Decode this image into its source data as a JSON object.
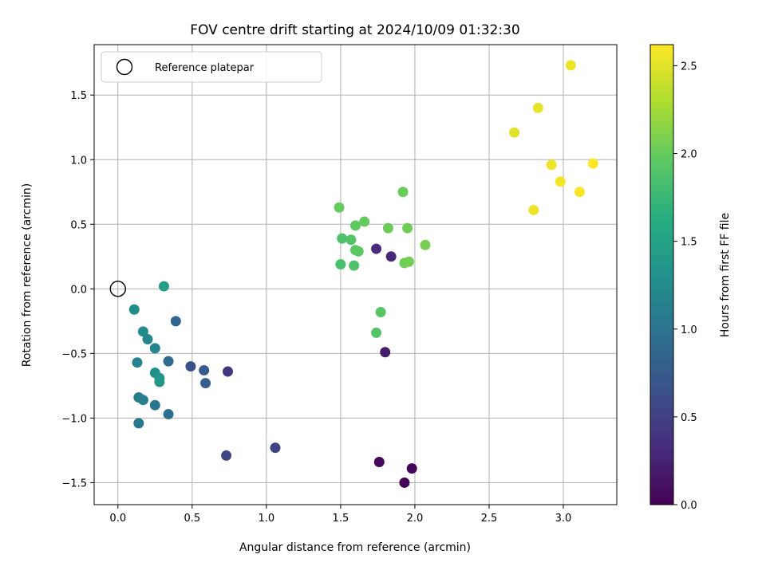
{
  "chart_data": {
    "type": "scatter",
    "title": "FOV centre drift starting at 2024/10/09 01:32:30",
    "xlabel": "Angular distance from reference (arcmin)",
    "ylabel": "Rotation from reference (arcmin)",
    "xlim": [
      -0.16,
      3.36
    ],
    "ylim": [
      -1.67,
      1.89
    ],
    "x_ticks": [
      0.0,
      0.5,
      1.0,
      1.5,
      2.0,
      2.5,
      3.0
    ],
    "x_tick_labels": [
      "0.0",
      "0.5",
      "1.0",
      "1.5",
      "2.0",
      "2.5",
      "3.0"
    ],
    "y_ticks": [
      -1.5,
      -1.0,
      -0.5,
      0.0,
      0.5,
      1.0,
      1.5
    ],
    "y_tick_labels": [
      "−1.5",
      "−1.0",
      "−0.5",
      "0.0",
      "0.5",
      "1.0",
      "1.5"
    ],
    "grid": true,
    "legend": {
      "position": "top-left",
      "entries": [
        "Reference platepar"
      ]
    },
    "colorbar": {
      "label": "Hours from first FF file",
      "colormap": "viridis",
      "range": [
        0.0,
        2.62
      ],
      "ticks": [
        0.0,
        0.5,
        1.0,
        1.5,
        2.0,
        2.5
      ],
      "tick_labels": [
        "0.0",
        "0.5",
        "1.0",
        "1.5",
        "2.0",
        "2.5"
      ]
    },
    "reference": {
      "x": 0.0,
      "y": 0.0,
      "marker": "hollow-circle"
    },
    "points": [
      {
        "x": 1.93,
        "y": -1.5,
        "c": 0.02
      },
      {
        "x": 1.98,
        "y": -1.39,
        "c": 0.04
      },
      {
        "x": 1.76,
        "y": -1.34,
        "c": 0.06
      },
      {
        "x": 1.8,
        "y": -0.49,
        "c": 0.2
      },
      {
        "x": 1.84,
        "y": 0.25,
        "c": 0.3
      },
      {
        "x": 1.74,
        "y": 0.31,
        "c": 0.32
      },
      {
        "x": 0.74,
        "y": -0.64,
        "c": 0.4
      },
      {
        "x": 1.06,
        "y": -1.23,
        "c": 0.5
      },
      {
        "x": 0.73,
        "y": -1.29,
        "c": 0.55
      },
      {
        "x": 0.49,
        "y": -0.6,
        "c": 0.65
      },
      {
        "x": 0.58,
        "y": -0.63,
        "c": 0.75
      },
      {
        "x": 0.59,
        "y": -0.73,
        "c": 0.78
      },
      {
        "x": 0.39,
        "y": -0.25,
        "c": 0.85
      },
      {
        "x": 0.34,
        "y": -0.56,
        "c": 0.9
      },
      {
        "x": 0.34,
        "y": -0.97,
        "c": 0.95
      },
      {
        "x": 0.25,
        "y": -0.9,
        "c": 1.0
      },
      {
        "x": 0.14,
        "y": -1.04,
        "c": 1.05
      },
      {
        "x": 0.14,
        "y": -0.84,
        "c": 1.1
      },
      {
        "x": 0.17,
        "y": -0.86,
        "c": 1.12
      },
      {
        "x": 0.13,
        "y": -0.57,
        "c": 1.15
      },
      {
        "x": 0.25,
        "y": -0.46,
        "c": 1.18
      },
      {
        "x": 0.2,
        "y": -0.39,
        "c": 1.2
      },
      {
        "x": 0.17,
        "y": -0.33,
        "c": 1.25
      },
      {
        "x": 0.11,
        "y": -0.16,
        "c": 1.28
      },
      {
        "x": 0.25,
        "y": -0.65,
        "c": 1.3
      },
      {
        "x": 0.28,
        "y": -0.69,
        "c": 1.35
      },
      {
        "x": 0.28,
        "y": -0.72,
        "c": 1.38
      },
      {
        "x": 0.31,
        "y": 0.02,
        "c": 1.45
      },
      {
        "x": 1.74,
        "y": -0.34,
        "c": 1.9
      },
      {
        "x": 1.77,
        "y": -0.18,
        "c": 1.92
      },
      {
        "x": 1.5,
        "y": 0.19,
        "c": 1.85
      },
      {
        "x": 1.59,
        "y": 0.18,
        "c": 1.88
      },
      {
        "x": 1.51,
        "y": 0.39,
        "c": 1.87
      },
      {
        "x": 1.57,
        "y": 0.38,
        "c": 1.9
      },
      {
        "x": 1.6,
        "y": 0.3,
        "c": 1.93
      },
      {
        "x": 1.62,
        "y": 0.29,
        "c": 1.95
      },
      {
        "x": 1.6,
        "y": 0.49,
        "c": 1.97
      },
      {
        "x": 1.66,
        "y": 0.52,
        "c": 1.99
      },
      {
        "x": 1.49,
        "y": 0.63,
        "c": 2.0
      },
      {
        "x": 1.82,
        "y": 0.47,
        "c": 2.02
      },
      {
        "x": 1.95,
        "y": 0.47,
        "c": 2.03
      },
      {
        "x": 1.93,
        "y": 0.2,
        "c": 2.04
      },
      {
        "x": 1.96,
        "y": 0.21,
        "c": 2.05
      },
      {
        "x": 2.07,
        "y": 0.34,
        "c": 2.07
      },
      {
        "x": 1.92,
        "y": 0.75,
        "c": 2.02
      },
      {
        "x": 2.67,
        "y": 1.21,
        "c": 2.5
      },
      {
        "x": 2.83,
        "y": 1.4,
        "c": 2.52
      },
      {
        "x": 3.05,
        "y": 1.73,
        "c": 2.55
      },
      {
        "x": 2.92,
        "y": 0.96,
        "c": 2.56
      },
      {
        "x": 2.98,
        "y": 0.83,
        "c": 2.58
      },
      {
        "x": 2.8,
        "y": 0.61,
        "c": 2.55
      },
      {
        "x": 3.11,
        "y": 0.75,
        "c": 2.6
      },
      {
        "x": 3.2,
        "y": 0.97,
        "c": 2.61
      }
    ]
  }
}
